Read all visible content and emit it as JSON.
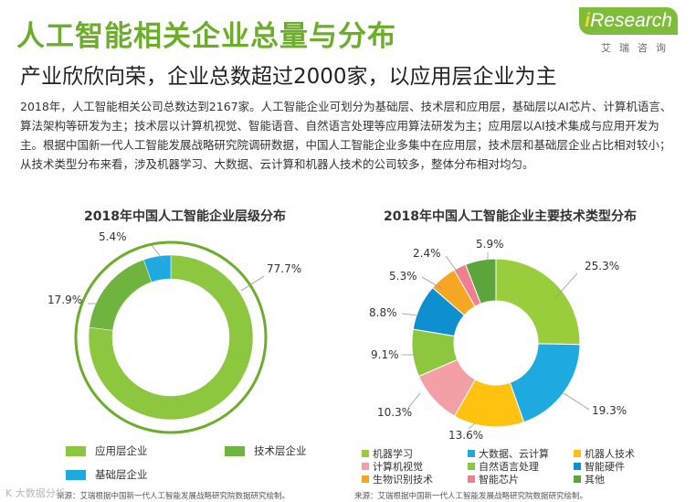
{
  "header": {
    "title": "人工智能相关企业总量与分布",
    "subtitle": "产业欣欣向荣，企业总数超过2000家，以应用层企业为主",
    "paragraph": "2018年，人工智能相关公司总数达到2167家。人工智能企业可划分为基础层、技术层和应用层，基础层以AI芯片、计算机语言、算法架构等研发为主；技术层以计算机视觉、智能语音、自然语言处理等应用算法研发为主；应用层以AI技术集成与应用开发为主。根据中国新一代人工智能发展战略研究院调研数据，中国人工智能企业多集中在应用层，技术层和基础层企业占比相对较小；从技术类型分布来看，涉及机器学习、大数据、云计算和机器人技术的公司较多，整体分布相对均匀。"
  },
  "logo": {
    "brand_i": "i",
    "brand_rest": "Research",
    "sub": "艾瑞咨询"
  },
  "chart_data": [
    {
      "type": "pie",
      "variant": "donut",
      "title": "2018年中国人工智能企业层级分布",
      "categories": [
        "应用层企业",
        "技术层企业",
        "基础层企业"
      ],
      "values": [
        77.7,
        17.9,
        5.4
      ],
      "labels": [
        "77.7%",
        "17.9%",
        "5.4%"
      ],
      "colors": [
        "#8dc63f",
        "#6fb43f",
        "#1fa9e1"
      ],
      "legend_position": "bottom",
      "source": "来源：艾瑞根据中国新一代人工智能发展战略研究院数据研究绘制。"
    },
    {
      "type": "pie",
      "variant": "donut",
      "title": "2018年中国人工智能企业主要技术类型分布",
      "categories": [
        "机器学习",
        "大数据、云计算",
        "机器人技术",
        "计算机视觉",
        "自然语言处理",
        "智能硬件",
        "生物识别技术",
        "智能芯片",
        "其他"
      ],
      "values": [
        25.3,
        19.3,
        13.6,
        10.3,
        9.1,
        8.8,
        5.3,
        2.4,
        5.9
      ],
      "labels": [
        "25.3%",
        "19.3%",
        "13.6%",
        "10.3%",
        "9.1%",
        "8.8%",
        "5.3%",
        "2.4%",
        "5.9%"
      ],
      "colors": [
        "#9acd3c",
        "#1fa9e1",
        "#ffc20e",
        "#f2a0a6",
        "#8dc63f",
        "#0d8fd0",
        "#f5a623",
        "#f08090",
        "#5aa63a"
      ],
      "legend_position": "bottom",
      "source": "来源：艾瑞根据中国新一代人工智能发展战略研究院数据研究绘制。"
    }
  ],
  "watermark": "K 大数据分析"
}
